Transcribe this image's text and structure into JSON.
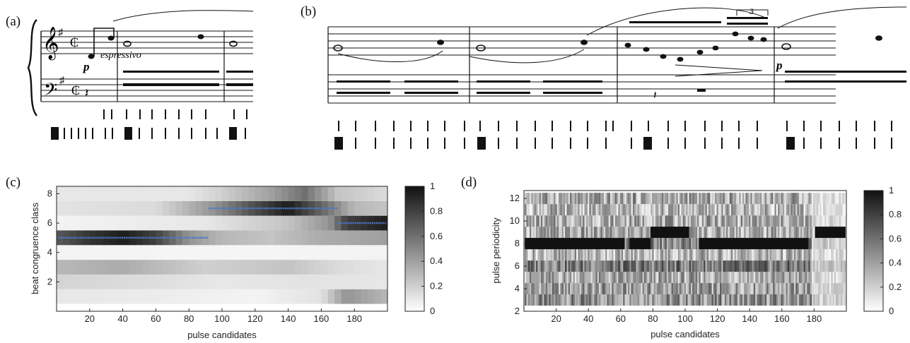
{
  "panels": {
    "a": "(a)",
    "b": "(b)",
    "c": "(c)",
    "d": "(d)"
  },
  "score": {
    "expression": "espressivo",
    "dynamic_a": "p",
    "dynamic_b": "p",
    "tuplet": "3"
  },
  "colors": {
    "heatmap_high": "#111111",
    "heatmap_low": "#ffffff",
    "path": "#4a78c8"
  },
  "chart_data": [
    {
      "type": "heatmap",
      "panel": "(c)",
      "xlabel": "pulse candidates",
      "ylabel": "beat congruence class",
      "xlim": [
        0,
        200
      ],
      "ylim": [
        0,
        8.5
      ],
      "xticks": [
        20,
        40,
        60,
        80,
        100,
        120,
        140,
        160,
        180
      ],
      "yticks": [
        2,
        4,
        6,
        8
      ],
      "colorbar": {
        "ticks": [
          "0",
          "0.2",
          "0.4",
          "0.6",
          "0.8",
          "1"
        ],
        "range": [
          0,
          1
        ]
      },
      "rows": [
        {
          "y": 1,
          "profile": [
            [
              0,
              0.1
            ],
            [
              60,
              0.08
            ],
            [
              120,
              0.05
            ],
            [
              160,
              0.12
            ],
            [
              175,
              0.45
            ],
            [
              200,
              0.3
            ]
          ]
        },
        {
          "y": 2,
          "profile": [
            [
              0,
              0.18
            ],
            [
              50,
              0.15
            ],
            [
              100,
              0.1
            ],
            [
              150,
              0.12
            ],
            [
              200,
              0.1
            ]
          ]
        },
        {
          "y": 3,
          "profile": [
            [
              0,
              0.3
            ],
            [
              40,
              0.35
            ],
            [
              90,
              0.2
            ],
            [
              140,
              0.25
            ],
            [
              170,
              0.15
            ],
            [
              200,
              0.1
            ]
          ]
        },
        {
          "y": 4,
          "profile": [
            [
              0,
              0.05
            ],
            [
              100,
              0.04
            ],
            [
              200,
              0.05
            ]
          ]
        },
        {
          "y": 5,
          "profile": [
            [
              0,
              0.7
            ],
            [
              20,
              0.85
            ],
            [
              40,
              0.95
            ],
            [
              60,
              0.8
            ],
            [
              80,
              0.45
            ],
            [
              100,
              0.3
            ],
            [
              130,
              0.25
            ],
            [
              160,
              0.35
            ],
            [
              200,
              0.4
            ]
          ]
        },
        {
          "y": 6,
          "profile": [
            [
              0,
              0.05
            ],
            [
              90,
              0.1
            ],
            [
              140,
              0.25
            ],
            [
              165,
              0.45
            ],
            [
              175,
              0.8
            ],
            [
              200,
              0.95
            ]
          ]
        },
        {
          "y": 7,
          "profile": [
            [
              0,
              0.12
            ],
            [
              60,
              0.15
            ],
            [
              95,
              0.45
            ],
            [
              120,
              0.75
            ],
            [
              140,
              0.95
            ],
            [
              160,
              0.65
            ],
            [
              180,
              0.3
            ],
            [
              200,
              0.25
            ]
          ]
        },
        {
          "y": 8,
          "profile": [
            [
              0,
              0.1
            ],
            [
              80,
              0.1
            ],
            [
              100,
              0.2
            ],
            [
              130,
              0.4
            ],
            [
              150,
              0.6
            ],
            [
              170,
              0.25
            ],
            [
              200,
              0.15
            ]
          ]
        }
      ],
      "paths": [
        {
          "y": 5,
          "x": [
            1,
            92
          ]
        },
        {
          "y": 7,
          "x": [
            92,
            170
          ]
        },
        {
          "y": 6,
          "x": [
            170,
            199
          ]
        }
      ]
    },
    {
      "type": "heatmap",
      "panel": "(d)",
      "xlabel": "pulse candidates",
      "ylabel": "pulse periodicity",
      "xlim": [
        0,
        200
      ],
      "ylim": [
        2,
        12.7
      ],
      "xticks": [
        20,
        40,
        60,
        80,
        100,
        120,
        140,
        160,
        180
      ],
      "yticks": [
        2,
        4,
        6,
        8,
        10,
        12
      ],
      "colorbar": {
        "ticks": [
          "0",
          "0.2",
          "0.4",
          "0.6",
          "0.8",
          "1"
        ],
        "range": [
          0,
          1
        ]
      },
      "rows": [
        {
          "y": 3,
          "base": 0.45
        },
        {
          "y": 4,
          "base": 0.4
        },
        {
          "y": 5,
          "base": 0.35
        },
        {
          "y": 6,
          "base": 0.55
        },
        {
          "y": 7,
          "base": 0.3
        },
        {
          "y": 8,
          "base": 0.5
        },
        {
          "y": 9,
          "base": 0.35
        },
        {
          "y": 10,
          "base": 0.35
        },
        {
          "y": 11,
          "base": 0.3
        },
        {
          "y": 12,
          "base": 0.35
        }
      ],
      "dark_segments": [
        {
          "y": 8,
          "x": [
            1,
            62
          ],
          "value": 1.0
        },
        {
          "y": 8,
          "x": [
            66,
            78
          ],
          "value": 1.0
        },
        {
          "y": 9,
          "x": [
            79,
            102
          ],
          "value": 1.0
        },
        {
          "y": 8,
          "x": [
            109,
            176
          ],
          "value": 1.0
        },
        {
          "y": 9,
          "x": [
            181,
            199
          ],
          "value": 1.0
        }
      ]
    }
  ]
}
